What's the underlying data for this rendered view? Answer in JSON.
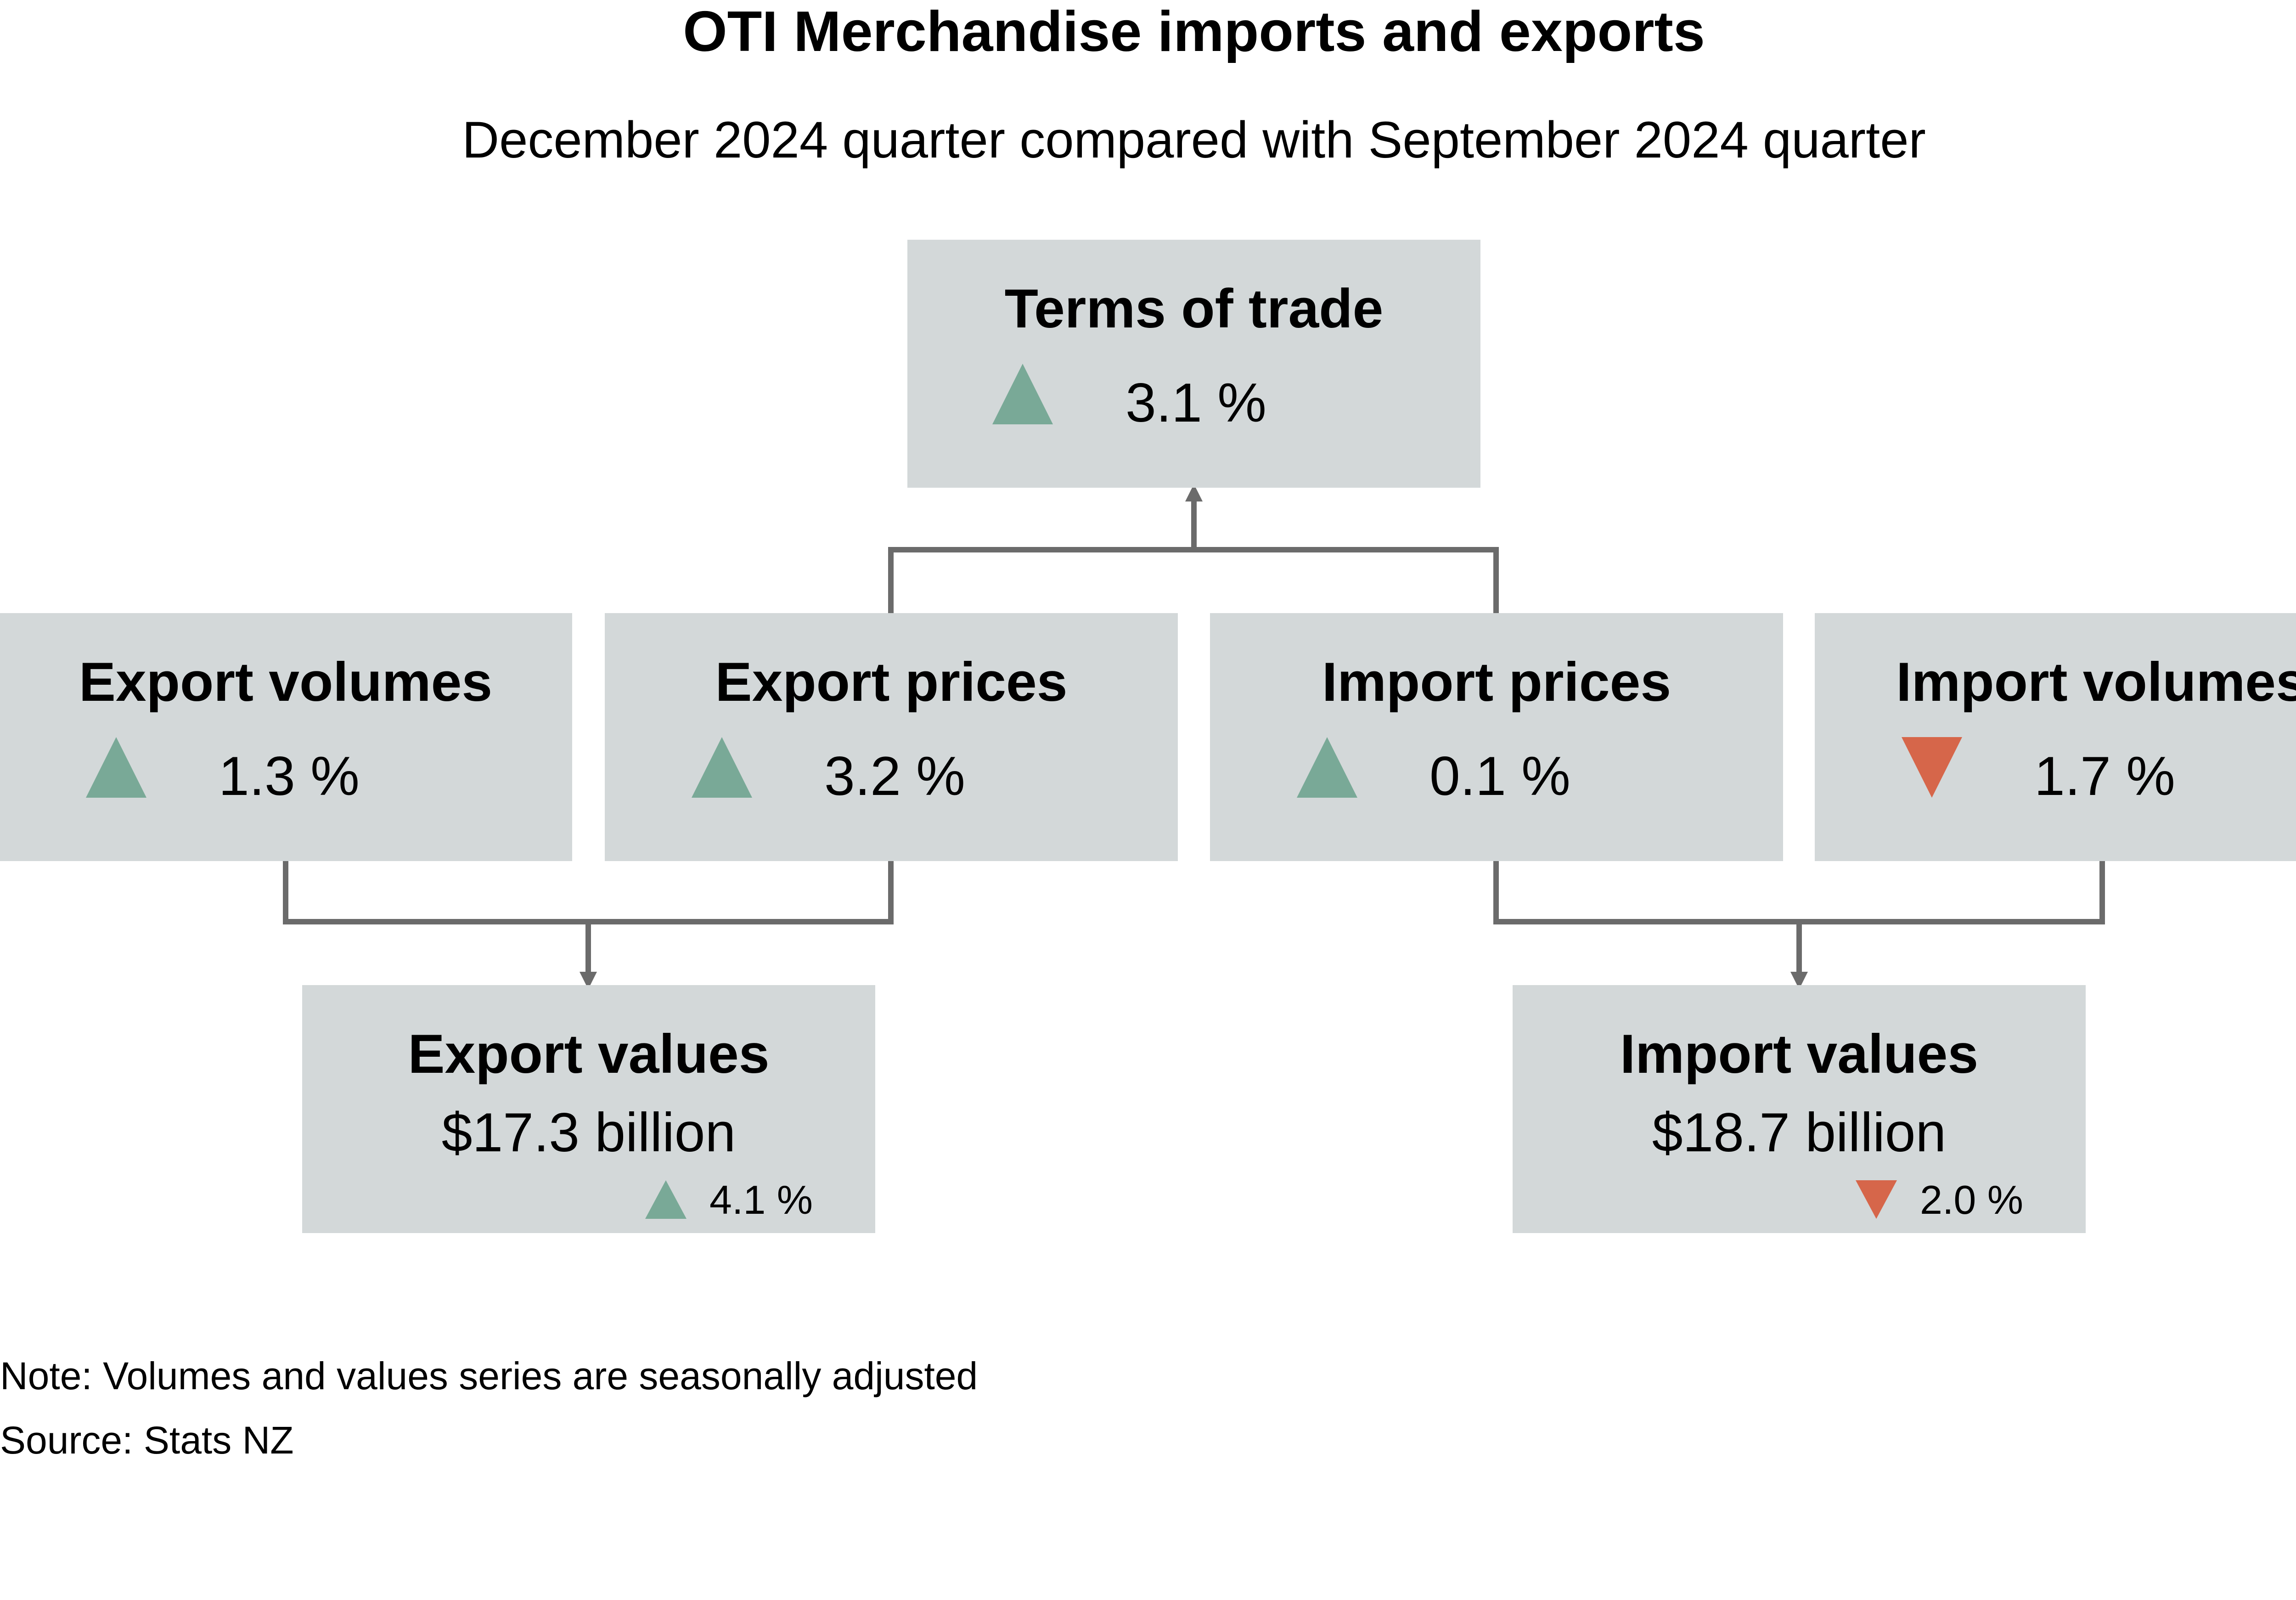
{
  "title": "OTI Merchandise imports and exports",
  "subtitle": "December 2024 quarter compared with September 2024 quarter",
  "colors": {
    "box_background": "#d3d8d9",
    "up": "#79a997",
    "down": "#d6664a",
    "connector": "#6b6b6b"
  },
  "terms_of_trade": {
    "label": "Terms of trade",
    "direction": "up",
    "change": "3.1 %"
  },
  "export_volumes": {
    "label": "Export volumes",
    "direction": "up",
    "change": "1.3 %"
  },
  "export_prices": {
    "label": "Export prices",
    "direction": "up",
    "change": "3.2 %"
  },
  "import_prices": {
    "label": "Import prices",
    "direction": "up",
    "change": "0.1 %"
  },
  "import_volumes": {
    "label": "Import volumes",
    "direction": "down",
    "change": "1.7 %"
  },
  "export_values": {
    "label": "Export values",
    "value": "$17.3 billion",
    "direction": "up",
    "change": "4.1 %"
  },
  "import_values": {
    "label": "Import values",
    "value": "$18.7 billion",
    "direction": "down",
    "change": "2.0 %"
  },
  "note": "Note: Volumes and values series are seasonally adjusted",
  "source": "Source: Stats NZ"
}
